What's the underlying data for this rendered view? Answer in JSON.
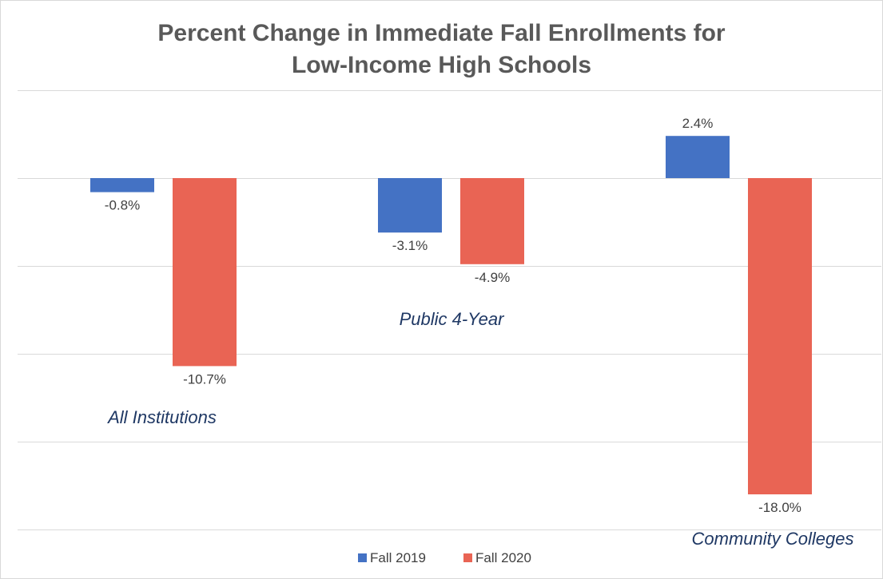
{
  "chart_data": {
    "type": "bar",
    "title": "Percent Change in Immediate Fall Enrollments for Low-Income High Schools",
    "title_lines": [
      "Percent Change in Immediate Fall Enrollments for",
      "Low-Income High Schools"
    ],
    "xlabel": "",
    "ylabel": "",
    "categories": [
      "All Institutions",
      "Public 4-Year",
      "Community Colleges"
    ],
    "series": [
      {
        "name": "Fall 2019",
        "color": "#4472c4",
        "values": [
          -0.8,
          -3.1,
          2.4
        ],
        "labels": [
          "-0.8%",
          "-3.1%",
          "2.4%"
        ]
      },
      {
        "name": "Fall 2020",
        "color": "#e96454",
        "values": [
          -10.7,
          -4.9,
          -18.0
        ],
        "labels": [
          "-10.7%",
          "-4.9%",
          "-18.0%"
        ]
      }
    ],
    "ylim": [
      -20,
      5
    ],
    "grid": true,
    "legend_position": "bottom",
    "value_format": "percent"
  }
}
